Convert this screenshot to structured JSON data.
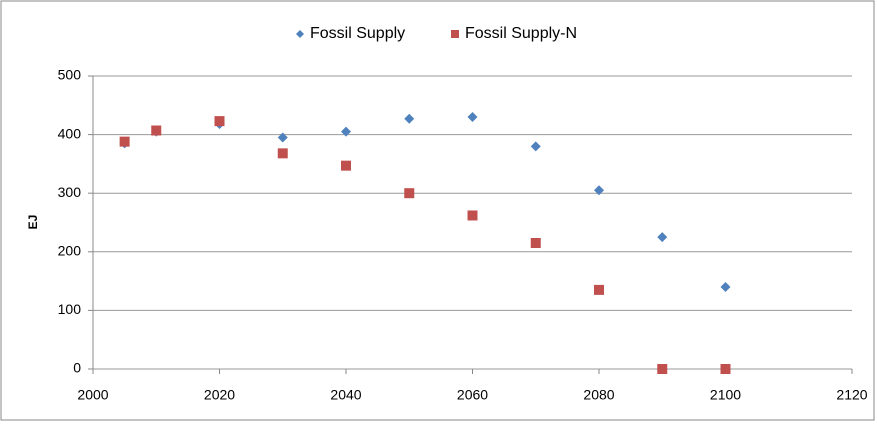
{
  "chart_data": {
    "type": "scatter",
    "y_label": "EJ",
    "x": [
      2005,
      2010,
      2020,
      2030,
      2040,
      2050,
      2060,
      2070,
      2080,
      2090,
      2100
    ],
    "series": [
      {
        "name": "Fossil Supply",
        "color": "#4f81bd",
        "marker": "diamond",
        "values": [
          385,
          405,
          418,
          395,
          405,
          427,
          430,
          380,
          305,
          225,
          140
        ]
      },
      {
        "name": "Fossil Supply-N",
        "color": "#c0504d",
        "marker": "square",
        "values": [
          388,
          407,
          423,
          368,
          347,
          300,
          262,
          215,
          135,
          0,
          0
        ]
      }
    ],
    "xlim": [
      2000,
      2120
    ],
    "xticks": [
      2000,
      2020,
      2040,
      2060,
      2080,
      2100,
      2120
    ],
    "ylim": [
      0,
      500
    ],
    "yticks": [
      0,
      100,
      200,
      300,
      400,
      500
    ],
    "grid": true,
    "legend": "top"
  }
}
